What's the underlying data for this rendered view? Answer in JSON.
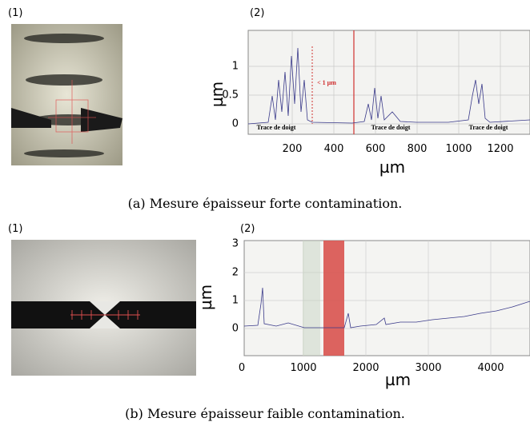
{
  "figures": [
    {
      "panel1_label": "(1)",
      "panel2_label": "(2)",
      "plot": {
        "y_label": "µm",
        "x_label": "µm",
        "yticks": [
          "1",
          "0.5",
          "0"
        ],
        "xticks": [
          "200",
          "400",
          "600",
          "800",
          "1000",
          "1200"
        ],
        "annotations": [
          "< 1 µm",
          "Trace de doigt",
          "Trace de doigt",
          "Trace de doigt"
        ]
      },
      "caption": "(a) Mesure épaisseur forte contamination."
    },
    {
      "panel1_label": "(1)",
      "panel2_label": "(2)",
      "plot": {
        "y_label": "µm",
        "x_label": "µm",
        "yticks": [
          "3",
          "2",
          "1",
          "0"
        ],
        "xticks": [
          "0",
          "1000",
          "2000",
          "3000",
          "4000"
        ]
      },
      "caption": "(b) Mesure épaisseur faible contamination."
    }
  ]
}
